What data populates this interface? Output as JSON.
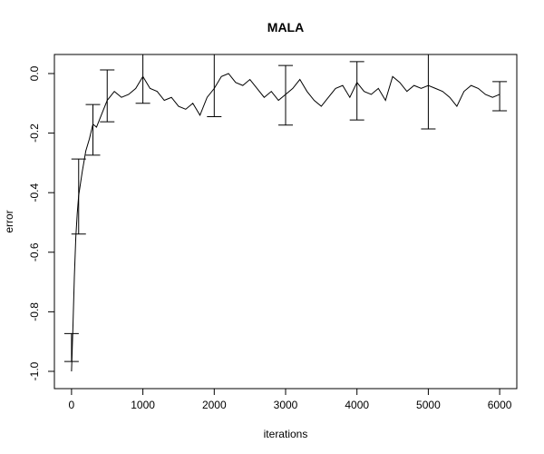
{
  "chart_data": {
    "type": "line",
    "title": "MALA",
    "xlabel": "iterations",
    "ylabel": "error",
    "color": "#000000",
    "x": [
      0,
      20,
      40,
      60,
      80,
      100,
      150,
      200,
      250,
      300,
      350,
      400,
      450,
      500,
      600,
      700,
      800,
      900,
      1000,
      1100,
      1200,
      1300,
      1400,
      1500,
      1600,
      1700,
      1800,
      1900,
      2000,
      2100,
      2200,
      2300,
      2400,
      2500,
      2600,
      2700,
      2800,
      2900,
      3000,
      3100,
      3200,
      3300,
      3400,
      3500,
      3600,
      3700,
      3800,
      3900,
      4000,
      4100,
      4200,
      4300,
      4400,
      4500,
      4600,
      4700,
      4800,
      4900,
      5000,
      5100,
      5200,
      5300,
      5400,
      5500,
      5600,
      5700,
      5800,
      5900,
      6000
    ],
    "values": [
      -1.0,
      -0.85,
      -0.68,
      -0.55,
      -0.47,
      -0.41,
      -0.33,
      -0.26,
      -0.22,
      -0.17,
      -0.18,
      -0.15,
      -0.12,
      -0.09,
      -0.06,
      -0.08,
      -0.07,
      -0.05,
      -0.01,
      -0.05,
      -0.06,
      -0.09,
      -0.08,
      -0.11,
      -0.12,
      -0.1,
      -0.14,
      -0.08,
      -0.05,
      -0.01,
      0.0,
      -0.03,
      -0.04,
      -0.02,
      -0.05,
      -0.08,
      -0.06,
      -0.09,
      -0.07,
      -0.05,
      -0.02,
      -0.06,
      -0.09,
      -0.11,
      -0.08,
      -0.05,
      -0.04,
      -0.08,
      -0.03,
      -0.06,
      -0.07,
      -0.05,
      -0.09,
      -0.01,
      -0.03,
      -0.06,
      -0.04,
      -0.05,
      -0.04,
      -0.05,
      -0.06,
      -0.08,
      -0.11,
      -0.06,
      -0.04,
      -0.05,
      -0.07,
      -0.08,
      -0.07
    ],
    "error_bars": {
      "x": [
        0,
        100,
        300,
        500,
        1000,
        2000,
        3000,
        4000,
        5000,
        6000
      ],
      "values": [
        -0.92,
        -0.413,
        -0.189,
        -0.075,
        -0.015,
        -0.04,
        -0.073,
        -0.058,
        -0.058,
        -0.076
      ],
      "errors": [
        0.047,
        0.126,
        0.085,
        0.087,
        0.085,
        0.105,
        0.1,
        0.098,
        0.128,
        0.049
      ]
    },
    "xlim": [
      -240,
      6240
    ],
    "ylim": [
      -1.058,
      0.064
    ],
    "xticks": [
      0,
      1000,
      2000,
      3000,
      4000,
      5000,
      6000
    ],
    "yticks": [
      {
        "value": -1.0,
        "label": "-1.0"
      },
      -0.8,
      -0.6,
      -0.4,
      -0.2,
      {
        "value": 0,
        "label": "0.0"
      }
    ]
  }
}
